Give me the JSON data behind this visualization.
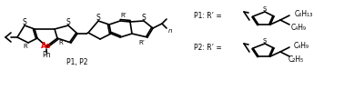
{
  "background_color": "#ffffff",
  "fig_width": 3.78,
  "fig_height": 0.99,
  "dpi": 100,
  "as_color": "#ff0000",
  "text_color": "#000000",
  "line_color": "#000000",
  "line_width": 1.2,
  "label_As": "As",
  "label_Ph": "Ph",
  "label_polymer": "P1, P2",
  "P1_label": "P1: R’ =",
  "P2_label": "P2: R’ =",
  "P1_chain_top": "C₆H₁₃",
  "P1_chain_bot": "C₄H₉",
  "P2_chain_top": "C₄H₉",
  "P2_chain_bot": "C₂H₅",
  "label_n": "n",
  "label_Rprime": "R’",
  "label_R": "R",
  "label_S": "S"
}
